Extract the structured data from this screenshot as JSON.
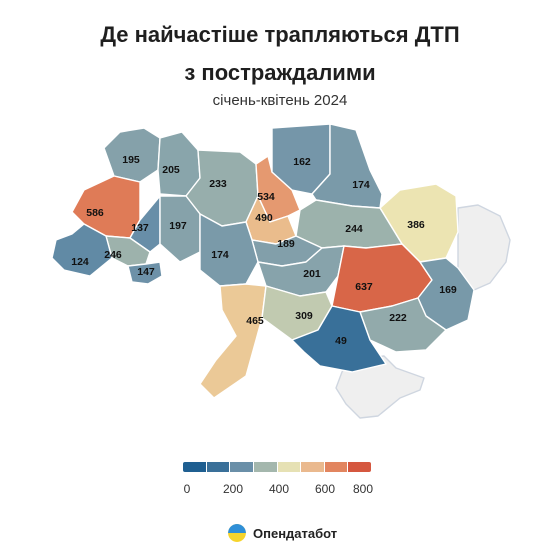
{
  "title_line1": "Де найчастіше трапляються ДТП",
  "title_line2": "з постраждалими",
  "subtitle": "січень-квітень 2024",
  "legend": {
    "ticks": [
      "0",
      "200",
      "400",
      "600",
      "800"
    ],
    "colors": [
      "#1f5f91",
      "#3a7099",
      "#6a8fa8",
      "#a4b7ad",
      "#e6e1b4",
      "#eab98e",
      "#e2855f",
      "#d5573f"
    ]
  },
  "brand": {
    "name": "Опендатабот"
  },
  "colors": {
    "nodata": "#efefef",
    "logo_blue": "#2f8fd8",
    "logo_yellow": "#f6d42c"
  },
  "chart_data": {
    "type": "choropleth",
    "scale": {
      "min": 0,
      "max": 800
    },
    "regions": [
      {
        "value": "195"
      },
      {
        "value": "205"
      },
      {
        "value": "233"
      },
      {
        "value": "534"
      },
      {
        "value": "162"
      },
      {
        "value": "174"
      },
      {
        "value": "586"
      },
      {
        "value": "137"
      },
      {
        "value": "197"
      },
      {
        "value": "490"
      },
      {
        "value": "386"
      },
      {
        "value": "244"
      },
      {
        "value": "246"
      },
      {
        "value": "189"
      },
      {
        "value": "124"
      },
      {
        "value": "147"
      },
      {
        "value": "174"
      },
      {
        "value": "201"
      },
      {
        "value": "637"
      },
      {
        "value": "169"
      },
      {
        "value": "465"
      },
      {
        "value": "309"
      },
      {
        "value": "222"
      },
      {
        "value": "49"
      }
    ]
  }
}
